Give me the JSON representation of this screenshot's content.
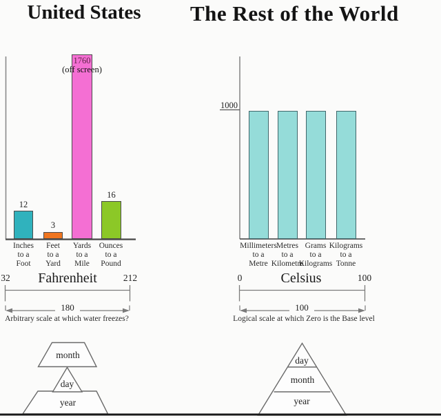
{
  "titles": {
    "left": "United States",
    "right": "The Rest of the World"
  },
  "chart_data": [
    {
      "type": "bar",
      "title": "United States",
      "categories": [
        "Inches to a Foot",
        "Feet to a Yard",
        "Yards to a Mile",
        "Ounces to a Pound"
      ],
      "category_lines": [
        [
          "Inches",
          "to a",
          "Foot"
        ],
        [
          "Feet",
          "to a",
          "Yard"
        ],
        [
          "Yards",
          "to a",
          "Mile"
        ],
        [
          "Ounces",
          "to a",
          "Pound"
        ]
      ],
      "values": [
        12,
        3,
        1760,
        16
      ],
      "value_labels": [
        "12",
        "3",
        "1760",
        "16"
      ],
      "annotation": "(off screen)",
      "annotation_for": "Yards to a Mile",
      "colors": [
        "#30b2bd",
        "#ef7520",
        "#f46fd3",
        "#8cc827"
      ],
      "ylim": [
        0,
        78
      ],
      "grid": false,
      "note": "Yards-to-a-Mile bar exceeds axis top (off screen)"
    },
    {
      "type": "bar",
      "title": "The Rest of the World",
      "categories": [
        "Millimeters to a Metre",
        "Metres to a Kilometre",
        "Grams to a Kilograms",
        "Kilograms to a Tonne"
      ],
      "category_lines": [
        [
          "Millimeters",
          "to a",
          "Metre"
        ],
        [
          "Metres",
          "to a",
          "Kilometre"
        ],
        [
          "Grams",
          "to a",
          "Kilograms"
        ],
        [
          "Kilograms",
          "to a",
          "Tonne"
        ]
      ],
      "values": [
        1000,
        1000,
        1000,
        1000
      ],
      "yticks": [
        "1000"
      ],
      "colors": [
        "#95dcd9",
        "#95dcd9",
        "#95dcd9",
        "#95dcd9"
      ],
      "ylim": [
        0,
        1425
      ],
      "grid": false
    }
  ],
  "scales": {
    "fahrenheit": {
      "name": "Fahrenheit",
      "start": "32",
      "end": "212",
      "range": "180",
      "caption": "Arbitrary scale at which water freezes?"
    },
    "celsius": {
      "name": "Celsius",
      "start": "0",
      "end": "100",
      "range": "100",
      "caption": "Logical scale at which Zero is the Base level"
    }
  },
  "pyramids": {
    "us": {
      "top": "month",
      "middle": "day",
      "bottom": "year"
    },
    "world": {
      "top": "day",
      "middle": "month",
      "bottom": "year"
    }
  },
  "palette": {
    "background": "#fbfbfa",
    "bar_teal": "#30b2bd",
    "bar_orange": "#ef7520",
    "bar_pink": "#f46fd3",
    "bar_green": "#8cc827",
    "bar_cyan": "#95dcd9",
    "line_gray": "#7b7b7b",
    "bottom_bar": "#1a1a1a"
  }
}
